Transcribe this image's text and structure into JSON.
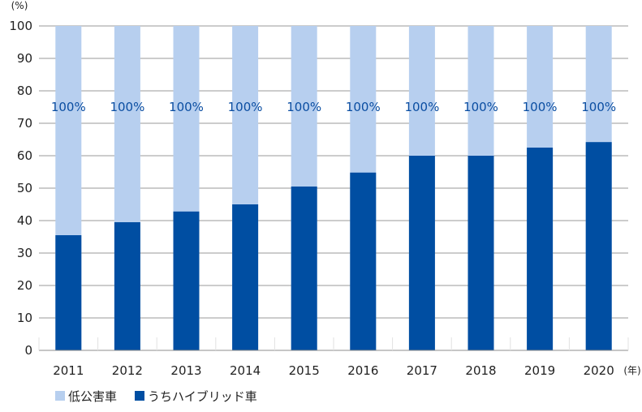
{
  "chart_data": {
    "type": "bar",
    "stacked_display": "overlap",
    "categories": [
      "2011",
      "2012",
      "2013",
      "2014",
      "2015",
      "2016",
      "2017",
      "2018",
      "2019",
      "2020"
    ],
    "series": [
      {
        "name": "低公害車",
        "values": [
          100,
          100,
          100,
          100,
          100,
          100,
          100,
          100,
          100,
          100
        ],
        "color": "#b7cfef"
      },
      {
        "name": "うちハイブリッド車",
        "values": [
          35.5,
          39.5,
          42.8,
          45,
          50.5,
          54.8,
          60,
          60,
          62.5,
          64.2
        ],
        "color": "#004ea2"
      }
    ],
    "data_labels": [
      "100%",
      "100%",
      "100%",
      "100%",
      "100%",
      "100%",
      "100%",
      "100%",
      "100%",
      "100%"
    ],
    "y_ticks": [
      "0",
      "10",
      "20",
      "30",
      "40",
      "50",
      "60",
      "70",
      "80",
      "90",
      "100"
    ],
    "ylim": [
      0,
      100
    ],
    "y_unit": "(%)",
    "x_unit": "(年)",
    "grid": true,
    "legend_position": "bottom-left",
    "colors": {
      "grid": "#9a9a9a",
      "axis": "#8c8c8c",
      "label": "#0b4ea2",
      "text": "#222222"
    }
  }
}
